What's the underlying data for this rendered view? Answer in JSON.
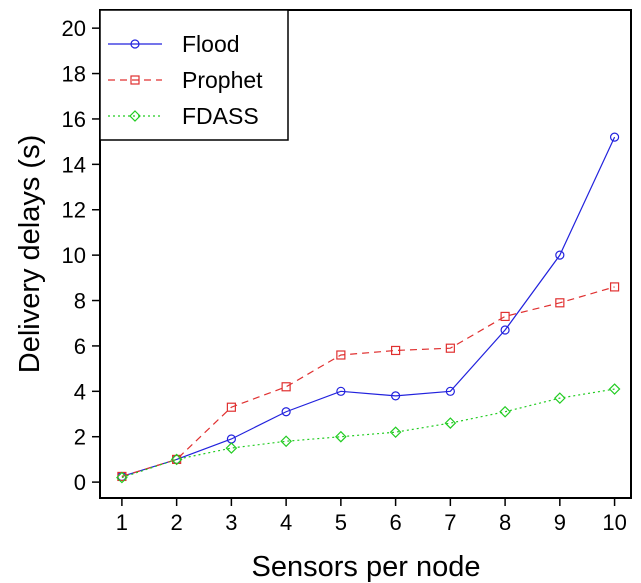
{
  "chart_data": {
    "type": "line",
    "title": "",
    "xlabel": "Sensors per node",
    "ylabel": "Delivery delays (s)",
    "x": [
      1,
      2,
      3,
      4,
      5,
      6,
      7,
      8,
      9,
      10
    ],
    "xticks": [
      "1",
      "2",
      "3",
      "4",
      "5",
      "6",
      "7",
      "8",
      "9",
      "10"
    ],
    "yticks": [
      "0",
      "2",
      "4",
      "6",
      "8",
      "10",
      "12",
      "14",
      "16",
      "18",
      "20"
    ],
    "xlim": [
      0.6,
      10.3
    ],
    "ylim": [
      -0.7,
      20.8
    ],
    "grid": false,
    "legend_position": "top-left",
    "series": [
      {
        "name": "Flood",
        "color": "#2222dd",
        "line_style": "solid",
        "marker": "circle",
        "values": [
          0.25,
          1.0,
          1.9,
          3.1,
          4.0,
          3.8,
          4.0,
          6.7,
          10.0,
          15.2
        ]
      },
      {
        "name": "Prophet",
        "color": "#e03030",
        "line_style": "dashed",
        "marker": "square",
        "values": [
          0.25,
          1.0,
          3.3,
          4.2,
          5.6,
          5.8,
          5.9,
          7.3,
          7.9,
          8.6
        ]
      },
      {
        "name": "FDASS",
        "color": "#22cc22",
        "line_style": "dotted",
        "marker": "diamond",
        "values": [
          0.2,
          1.0,
          1.5,
          1.8,
          2.0,
          2.2,
          2.6,
          3.1,
          3.7,
          4.1
        ]
      }
    ]
  }
}
